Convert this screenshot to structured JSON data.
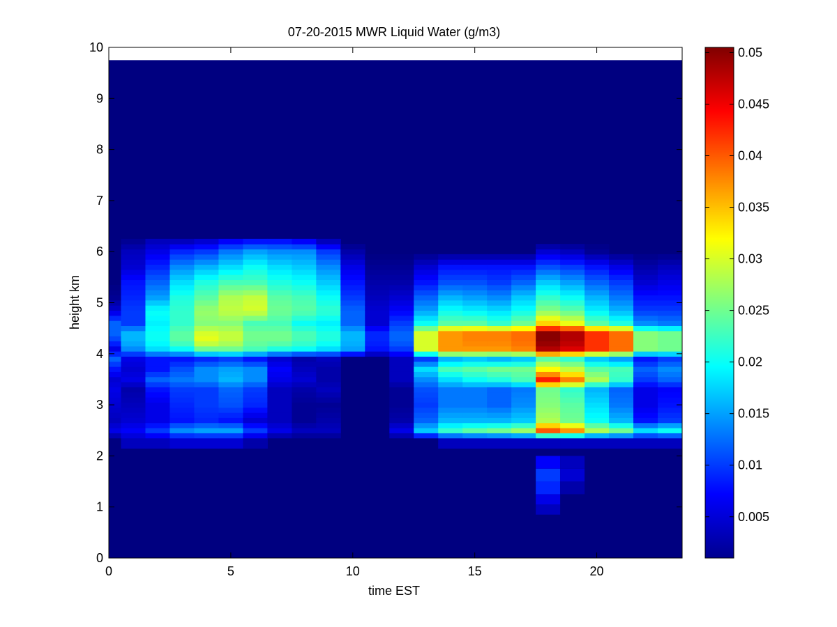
{
  "chart_data": {
    "type": "heatmap",
    "title": "07-20-2015 MWR Liquid Water (g/m3)",
    "xlabel": "time EST",
    "ylabel": "height km",
    "xlim": [
      0,
      23.5
    ],
    "ylim": [
      0,
      10
    ],
    "xticks": [
      0,
      5,
      10,
      15,
      20
    ],
    "yticks": [
      0,
      1,
      2,
      3,
      4,
      5,
      6,
      7,
      8,
      9,
      10
    ],
    "colormap": "jet",
    "colorbar": {
      "min": 0.001,
      "max": 0.0505,
      "ticks": [
        0.005,
        0.01,
        0.015,
        0.02,
        0.025,
        0.03,
        0.035,
        0.04,
        0.045,
        0.05
      ],
      "tick_labels": [
        "0.005",
        "0.01",
        "0.015",
        "0.02",
        "0.025",
        "0.03",
        "0.035",
        "0.04",
        "0.045",
        "0.05"
      ]
    },
    "data_extent": {
      "x_start": 0,
      "x_end": 23.5,
      "y_start": 0,
      "y_end": 9.75
    },
    "hours": [
      0,
      1,
      2,
      3,
      4,
      5,
      6,
      7,
      8,
      9,
      10,
      11,
      12,
      13,
      14,
      15,
      16,
      17,
      18,
      19,
      20,
      21,
      22,
      23
    ],
    "z_profile": {
      "heights_km": [
        2.3,
        2.5,
        2.7,
        3.0,
        3.3,
        3.5,
        3.7,
        3.9,
        4.1,
        4.25,
        4.4,
        4.6,
        4.85,
        5.1,
        5.4,
        5.7,
        6.0,
        6.2
      ],
      "values": [
        [
          0.001,
          0.006,
          0.004,
          0.005,
          0.006,
          0.005,
          0.008,
          0.012,
          0.006,
          0.01,
          0.012,
          0.012,
          0.005,
          0.002,
          0.001,
          0.001,
          0.001,
          0.001
        ],
        [
          0.004,
          0.007,
          0.005,
          0.004,
          0.003,
          0.006,
          0.005,
          0.006,
          0.014,
          0.016,
          0.016,
          0.01,
          0.01,
          0.009,
          0.008,
          0.005,
          0.004,
          0.002
        ],
        [
          0.004,
          0.01,
          0.006,
          0.006,
          0.008,
          0.012,
          0.008,
          0.008,
          0.018,
          0.02,
          0.02,
          0.019,
          0.02,
          0.015,
          0.012,
          0.009,
          0.006,
          0.004
        ],
        [
          0.005,
          0.014,
          0.008,
          0.009,
          0.01,
          0.013,
          0.011,
          0.008,
          0.02,
          0.024,
          0.024,
          0.022,
          0.022,
          0.021,
          0.018,
          0.014,
          0.009,
          0.004
        ],
        [
          0.005,
          0.015,
          0.009,
          0.01,
          0.01,
          0.014,
          0.014,
          0.009,
          0.025,
          0.031,
          0.03,
          0.026,
          0.027,
          0.024,
          0.021,
          0.016,
          0.01,
          0.005
        ],
        [
          0.005,
          0.015,
          0.008,
          0.011,
          0.012,
          0.016,
          0.015,
          0.01,
          0.025,
          0.029,
          0.029,
          0.026,
          0.029,
          0.028,
          0.023,
          0.018,
          0.013,
          0.007
        ],
        [
          0.003,
          0.01,
          0.005,
          0.009,
          0.01,
          0.014,
          0.014,
          0.008,
          0.023,
          0.025,
          0.025,
          0.023,
          0.03,
          0.029,
          0.023,
          0.02,
          0.015,
          0.008
        ],
        [
          0.001,
          0.006,
          0.004,
          0.004,
          0.004,
          0.006,
          0.007,
          0.005,
          0.021,
          0.025,
          0.025,
          0.023,
          0.025,
          0.024,
          0.021,
          0.018,
          0.014,
          0.008
        ],
        [
          0.001,
          0.004,
          0.002,
          0.002,
          0.003,
          0.005,
          0.004,
          0.003,
          0.02,
          0.023,
          0.023,
          0.02,
          0.024,
          0.023,
          0.02,
          0.017,
          0.014,
          0.007
        ],
        [
          0.001,
          0.004,
          0.003,
          0.002,
          0.004,
          0.003,
          0.003,
          0.004,
          0.018,
          0.021,
          0.021,
          0.019,
          0.022,
          0.02,
          0.017,
          0.014,
          0.01,
          0.004
        ],
        [
          0.001,
          0.001,
          0.001,
          0.001,
          0.001,
          0.001,
          0.001,
          0.001,
          0.015,
          0.016,
          0.016,
          0.012,
          0.012,
          0.01,
          0.008,
          0.006,
          0.003,
          0.001
        ],
        [
          0.001,
          0.001,
          0.001,
          0.001,
          0.001,
          0.001,
          0.001,
          0.001,
          0.008,
          0.009,
          0.009,
          0.005,
          0.005,
          0.004,
          0.003,
          0.002,
          0.001,
          0.001
        ],
        [
          0.001,
          0.006,
          0.003,
          0.002,
          0.002,
          0.004,
          0.004,
          0.004,
          0.01,
          0.012,
          0.012,
          0.01,
          0.007,
          0.005,
          0.003,
          0.002,
          0.001,
          0.001
        ],
        [
          0.001,
          0.017,
          0.012,
          0.01,
          0.011,
          0.014,
          0.018,
          0.01,
          0.03,
          0.03,
          0.03,
          0.02,
          0.015,
          0.012,
          0.008,
          0.005,
          0.001,
          0.001
        ],
        [
          0.004,
          0.022,
          0.016,
          0.013,
          0.013,
          0.018,
          0.023,
          0.016,
          0.037,
          0.037,
          0.037,
          0.024,
          0.02,
          0.016,
          0.011,
          0.008,
          0.001,
          0.001
        ],
        [
          0.004,
          0.024,
          0.016,
          0.013,
          0.013,
          0.02,
          0.024,
          0.017,
          0.037,
          0.038,
          0.038,
          0.024,
          0.019,
          0.015,
          0.011,
          0.008,
          0.001,
          0.001
        ],
        [
          0.004,
          0.025,
          0.016,
          0.012,
          0.012,
          0.021,
          0.025,
          0.016,
          0.037,
          0.038,
          0.038,
          0.022,
          0.018,
          0.014,
          0.01,
          0.008,
          0.001,
          0.001
        ],
        [
          0.004,
          0.027,
          0.017,
          0.014,
          0.013,
          0.023,
          0.025,
          0.017,
          0.038,
          0.039,
          0.039,
          0.025,
          0.02,
          0.017,
          0.012,
          0.008,
          0.001,
          0.001
        ],
        [
          0.004,
          0.04,
          0.028,
          0.026,
          0.025,
          0.043,
          0.032,
          0.024,
          0.048,
          0.05,
          0.05,
          0.034,
          0.026,
          0.022,
          0.017,
          0.011,
          0.005,
          0.001
        ],
        [
          0.004,
          0.037,
          0.025,
          0.024,
          0.022,
          0.038,
          0.029,
          0.022,
          0.046,
          0.048,
          0.048,
          0.031,
          0.024,
          0.02,
          0.015,
          0.01,
          0.004,
          0.001
        ],
        [
          0.004,
          0.028,
          0.02,
          0.018,
          0.016,
          0.028,
          0.024,
          0.017,
          0.042,
          0.042,
          0.042,
          0.024,
          0.019,
          0.016,
          0.012,
          0.008,
          0.002,
          0.001
        ],
        [
          0.004,
          0.025,
          0.016,
          0.013,
          0.012,
          0.022,
          0.023,
          0.015,
          0.039,
          0.039,
          0.039,
          0.021,
          0.016,
          0.013,
          0.01,
          0.006,
          0.001,
          0.001
        ],
        [
          0.004,
          0.018,
          0.008,
          0.006,
          0.006,
          0.01,
          0.012,
          0.008,
          0.026,
          0.026,
          0.026,
          0.014,
          0.01,
          0.008,
          0.005,
          0.003,
          0.001,
          0.001
        ],
        [
          0.004,
          0.02,
          0.01,
          0.008,
          0.007,
          0.012,
          0.014,
          0.01,
          0.025,
          0.025,
          0.025,
          0.013,
          0.01,
          0.008,
          0.006,
          0.004,
          0.001,
          0.001
        ]
      ]
    },
    "low_level_echo": {
      "hours": [
        18,
        19
      ],
      "heights_km": [
        0.85,
        1.05,
        1.25,
        1.5,
        1.75,
        2.0
      ],
      "values": [
        [
          0.004,
          0.006,
          0.009,
          0.01,
          0.007,
          0.004
        ],
        [
          0.001,
          0.001,
          0.003,
          0.005,
          0.004,
          0.002
        ]
      ]
    }
  }
}
